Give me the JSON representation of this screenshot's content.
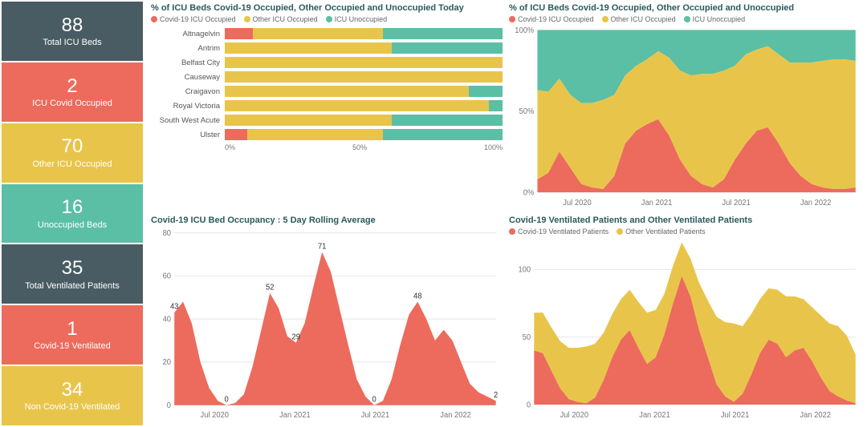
{
  "colors": {
    "slate": "#4a5c63",
    "coral": "#ec6b5d",
    "mustard": "#e8c54a",
    "teal": "#5bbfa5",
    "grid": "#e8e8e8",
    "title": "#2a5a5a"
  },
  "sidebar": [
    {
      "value": "88",
      "label": "Total ICU Beds",
      "bg": "#4a5c63"
    },
    {
      "value": "2",
      "label": "ICU Covid Occupied",
      "bg": "#ec6b5d"
    },
    {
      "value": "70",
      "label": "Other ICU Occupied",
      "bg": "#e8c54a"
    },
    {
      "value": "16",
      "label": "Unoccupied Beds",
      "bg": "#5bbfa5"
    },
    {
      "value": "35",
      "label": "Total Ventilated Patients",
      "bg": "#4a5c63"
    },
    {
      "value": "1",
      "label": "Covid-19 Ventilated",
      "bg": "#ec6b5d"
    },
    {
      "value": "34",
      "label": "Non Covid-19 Ventilated",
      "bg": "#e8c54a"
    }
  ],
  "panel_hbar": {
    "title": "% of ICU Beds Covid-19 Occupied, Other Occupied and Unoccupied Today",
    "legend": [
      {
        "label": "Covid-19 ICU Occupied",
        "color": "#ec6b5d"
      },
      {
        "label": "Other ICU Occupied",
        "color": "#e8c54a"
      },
      {
        "label": "ICU Unoccupied",
        "color": "#5bbfa5"
      }
    ],
    "rows": [
      {
        "label": "Altnagelvin",
        "covid": 10,
        "other": 47,
        "unocc": 43
      },
      {
        "label": "Antrim",
        "covid": 0,
        "other": 60,
        "unocc": 40
      },
      {
        "label": "Belfast City",
        "covid": 0,
        "other": 100,
        "unocc": 0
      },
      {
        "label": "Causeway",
        "covid": 0,
        "other": 100,
        "unocc": 0
      },
      {
        "label": "Craigavon",
        "covid": 0,
        "other": 88,
        "unocc": 12
      },
      {
        "label": "Royal Victoria",
        "covid": 0,
        "other": 95,
        "unocc": 5
      },
      {
        "label": "South West Acute",
        "covid": 0,
        "other": 60,
        "unocc": 40
      },
      {
        "label": "Ulster",
        "covid": 8,
        "other": 49,
        "unocc": 43
      }
    ],
    "xticks": [
      "0%",
      "50%",
      "100%"
    ]
  },
  "panel_stacked100": {
    "title": "% of ICU Beds Covid-19 Occupied, Other Occupied and Unoccupied",
    "legend": [
      {
        "label": "Covid-19 ICU Occupied",
        "color": "#ec6b5d"
      },
      {
        "label": "Other ICU Occupied",
        "color": "#e8c54a"
      },
      {
        "label": "ICU Unoccupied",
        "color": "#5bbfa5"
      }
    ],
    "yticks": [
      "0%",
      "50%",
      "100%"
    ],
    "xticks": [
      "Jul 2020",
      "Jan 2021",
      "Jul 2021",
      "Jan 2022"
    ],
    "series": {
      "covid": [
        8,
        12,
        25,
        15,
        5,
        3,
        2,
        10,
        30,
        38,
        42,
        45,
        35,
        20,
        10,
        5,
        3,
        8,
        20,
        30,
        38,
        40,
        30,
        18,
        10,
        5,
        3,
        2,
        2,
        3
      ],
      "other": [
        55,
        50,
        45,
        45,
        50,
        52,
        55,
        50,
        42,
        40,
        40,
        42,
        48,
        55,
        62,
        68,
        70,
        67,
        58,
        55,
        50,
        50,
        55,
        62,
        70,
        75,
        78,
        80,
        80,
        78
      ],
      "unocc": [
        37,
        38,
        30,
        40,
        45,
        45,
        43,
        40,
        28,
        22,
        18,
        13,
        17,
        25,
        28,
        27,
        27,
        25,
        22,
        15,
        12,
        10,
        15,
        20,
        20,
        20,
        19,
        18,
        18,
        19
      ]
    }
  },
  "panel_rolling": {
    "title": "Covid-19 ICU Bed Occupancy : 5 Day Rolling Average",
    "yticks": [
      0,
      20,
      40,
      60,
      80
    ],
    "ymax": 80,
    "xticks": [
      "Jul 2020",
      "Jan 2021",
      "Jul 2021",
      "Jan 2022"
    ],
    "color": "#ec6b5d",
    "series": [
      43,
      48,
      38,
      20,
      8,
      2,
      0,
      1,
      5,
      18,
      35,
      52,
      45,
      32,
      29,
      38,
      55,
      71,
      62,
      45,
      28,
      12,
      4,
      0,
      2,
      12,
      28,
      42,
      48,
      40,
      30,
      35,
      30,
      20,
      10,
      6,
      4,
      2
    ],
    "annotations": [
      {
        "i": 0,
        "v": 43,
        "text": "43"
      },
      {
        "i": 6,
        "v": 0,
        "text": "0"
      },
      {
        "i": 11,
        "v": 52,
        "text": "52"
      },
      {
        "i": 14,
        "v": 29,
        "text": "29"
      },
      {
        "i": 17,
        "v": 71,
        "text": "71"
      },
      {
        "i": 23,
        "v": 0,
        "text": "0"
      },
      {
        "i": 28,
        "v": 48,
        "text": "48"
      },
      {
        "i": 37,
        "v": 2,
        "text": "2"
      }
    ]
  },
  "panel_vent": {
    "title": "Covid-19 Ventilated Patients and Other Ventilated Patients",
    "legend": [
      {
        "label": "Covid-19 Ventilated Patients",
        "color": "#ec6b5d"
      },
      {
        "label": "Other Ventilated Patients",
        "color": "#e8c54a"
      }
    ],
    "yticks": [
      0,
      50,
      100
    ],
    "ymax": 120,
    "xticks": [
      "Jul 2020",
      "Jan 2021",
      "Jul 2021",
      "Jan 2022"
    ],
    "series": {
      "covid": [
        40,
        38,
        25,
        12,
        4,
        2,
        1,
        5,
        18,
        35,
        48,
        55,
        42,
        30,
        35,
        52,
        75,
        95,
        80,
        55,
        35,
        15,
        6,
        2,
        8,
        22,
        38,
        48,
        45,
        35,
        40,
        42,
        32,
        20,
        10,
        6,
        3,
        1
      ],
      "other": [
        28,
        30,
        32,
        35,
        38,
        40,
        42,
        40,
        35,
        32,
        30,
        30,
        34,
        38,
        35,
        30,
        28,
        25,
        28,
        35,
        42,
        50,
        55,
        58,
        50,
        45,
        40,
        38,
        40,
        45,
        40,
        36,
        40,
        46,
        50,
        52,
        48,
        36
      ]
    }
  }
}
